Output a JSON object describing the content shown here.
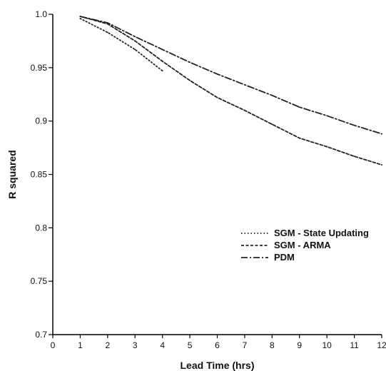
{
  "chart_data": {
    "type": "line",
    "xlabel": "Lead Time (hrs)",
    "ylabel": "R squared",
    "xlim": [
      0,
      12
    ],
    "ylim": [
      0.7,
      1.0
    ],
    "xticks": [
      "0",
      "1",
      "2",
      "3",
      "4",
      "5",
      "6",
      "7",
      "8",
      "9",
      "10",
      "11",
      "12"
    ],
    "yticks": [
      "0.7",
      "0.75",
      "0.8",
      "0.85",
      "0.9",
      "0.95",
      "1.0"
    ],
    "grid": false,
    "legend_position": "lower-right",
    "series": [
      {
        "name": "SGM - State Updating",
        "dash": "dotted",
        "x": [
          1,
          2,
          3,
          4
        ],
        "y": [
          0.996,
          0.983,
          0.967,
          0.947
        ]
      },
      {
        "name": "SGM - ARMA",
        "dash": "dashed",
        "x": [
          1,
          2,
          3,
          4,
          5,
          6,
          7,
          8,
          9,
          10,
          11,
          12
        ],
        "y": [
          0.998,
          0.991,
          0.975,
          0.956,
          0.938,
          0.922,
          0.91,
          0.897,
          0.884,
          0.876,
          0.867,
          0.859
        ]
      },
      {
        "name": "PDM",
        "dash": "dashdot",
        "x": [
          1,
          2,
          3,
          4,
          5,
          6,
          7,
          8,
          9,
          10,
          11,
          12
        ],
        "y": [
          0.998,
          0.992,
          0.979,
          0.967,
          0.955,
          0.944,
          0.934,
          0.924,
          0.913,
          0.905,
          0.896,
          0.888
        ]
      }
    ]
  }
}
